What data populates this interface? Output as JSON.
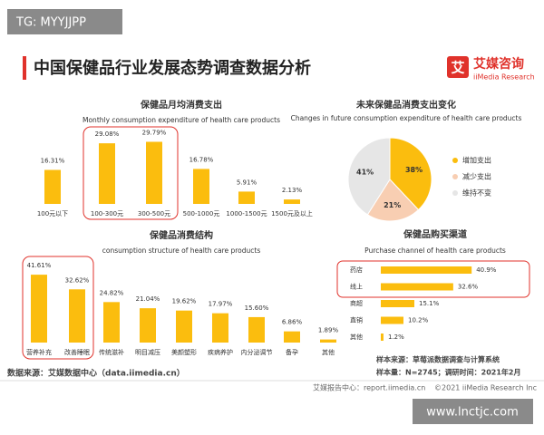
{
  "watermark": "TG: MYYJJPP",
  "header": {
    "title": "中国保健品行业发展态势调查数据分析",
    "logo": "艾",
    "brand": "艾媒咨询",
    "brand_en": "iiMedia Research"
  },
  "chart_data": [
    {
      "type": "bar",
      "title": "保健品月均消费支出",
      "subtitle": "Monthly consumption expenditure of health care products",
      "categories": [
        "100元以下",
        "100-300元",
        "300-500元",
        "500-1000元",
        "1000-1500元",
        "1500元及以上"
      ],
      "values": [
        16.31,
        29.08,
        29.79,
        16.78,
        5.91,
        2.13
      ],
      "value_labels": [
        "16.31%",
        "29.08%",
        "29.79%",
        "16.78%",
        "5.91%",
        "2.13%"
      ],
      "color": "#fbbd0e"
    },
    {
      "type": "pie",
      "title": "未来保健品消费支出变化",
      "subtitle": "Changes in future consumption expenditure of health care products",
      "categories": [
        "增加支出",
        "减少支出",
        "维持不变"
      ],
      "values": [
        38,
        21,
        41
      ],
      "value_labels": [
        "38%",
        "21%",
        "41%"
      ],
      "colors": [
        "#fbbd0e",
        "#f8ceb2",
        "#e6e6e6"
      ]
    },
    {
      "type": "bar",
      "title": "保健品消费结构",
      "subtitle": "consumption structure of health care products",
      "categories": [
        "营养补充",
        "改善睡眠",
        "传统滋补",
        "明目减压",
        "美颜塑形",
        "疾病养护",
        "内分泌调节",
        "备孕",
        "其他"
      ],
      "values": [
        41.61,
        32.62,
        24.82,
        21.04,
        19.62,
        17.97,
        15.6,
        6.86,
        1.89
      ],
      "value_labels": [
        "41.61%",
        "32.62%",
        "24.82%",
        "21.04%",
        "19.62%",
        "17.97%",
        "15.60%",
        "6.86%",
        "1.89%"
      ],
      "color": "#fbbd0e"
    },
    {
      "type": "hbar",
      "title": "保健品购买渠道",
      "subtitle": "Purchase channel of health care products",
      "categories": [
        "药店",
        "线上",
        "商超",
        "直销",
        "其他"
      ],
      "values": [
        40.9,
        32.6,
        15.1,
        10.2,
        1.2
      ],
      "value_labels": [
        "40.9%",
        "32.6%",
        "15.1%",
        "10.2%",
        "1.2%"
      ],
      "color": "#fbbd0e"
    }
  ],
  "footer": {
    "source": "数据来源：艾媒数据中心（data.iimedia.cn）",
    "sample_source": "样本来源：草莓派数据调查与计算系统",
    "sample_size": "样本量：N=2745；调研时间：2021年2月",
    "report_center": "艾媒报告中心：report.iimedia.cn",
    "copyright": "©2021  iiMedia Research  Inc",
    "site": "www.lnctjc.com"
  }
}
